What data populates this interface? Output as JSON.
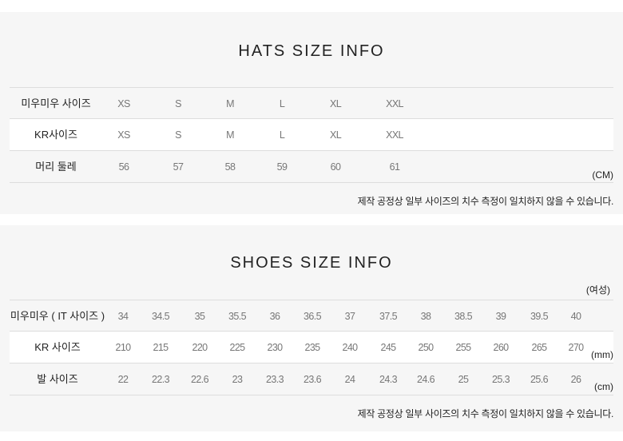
{
  "hats": {
    "title": "HATS SIZE INFO",
    "unit": "(CM)",
    "note": "제작 공정상 일부 사이즈의 치수 측정이 일치하지 않을 수 있습니다.",
    "rows": [
      {
        "label": "미우미우 사이즈",
        "values": [
          "XS",
          "S",
          "M",
          "L",
          "XL",
          "XXL"
        ]
      },
      {
        "label": "KR사이즈",
        "values": [
          "XS",
          "S",
          "M",
          "L",
          "XL",
          "XXL"
        ]
      },
      {
        "label": "머리 둘레",
        "values": [
          "56",
          "57",
          "58",
          "59",
          "60",
          "61"
        ]
      }
    ]
  },
  "shoes": {
    "title": "SHOES SIZE INFO",
    "gender": "(여성)",
    "note": "제작 공정상 일부 사이즈의 치수 측정이 일치하지 않을 수 있습니다.",
    "rows": [
      {
        "label": "미우미우 ( IT 사이즈 )",
        "unit": "",
        "values": [
          "34",
          "34.5",
          "35",
          "35.5",
          "36",
          "36.5",
          "37",
          "37.5",
          "38",
          "38.5",
          "39",
          "39.5",
          "40"
        ]
      },
      {
        "label": "KR 사이즈",
        "unit": "(mm)",
        "values": [
          "210",
          "215",
          "220",
          "225",
          "230",
          "235",
          "240",
          "245",
          "250",
          "255",
          "260",
          "265",
          "270"
        ]
      },
      {
        "label": "발 사이즈",
        "unit": "(cm)",
        "values": [
          "22",
          "22.3",
          "22.6",
          "23",
          "23.3",
          "23.6",
          "24",
          "24.3",
          "24.6",
          "25",
          "25.3",
          "25.6",
          "26"
        ]
      }
    ]
  }
}
